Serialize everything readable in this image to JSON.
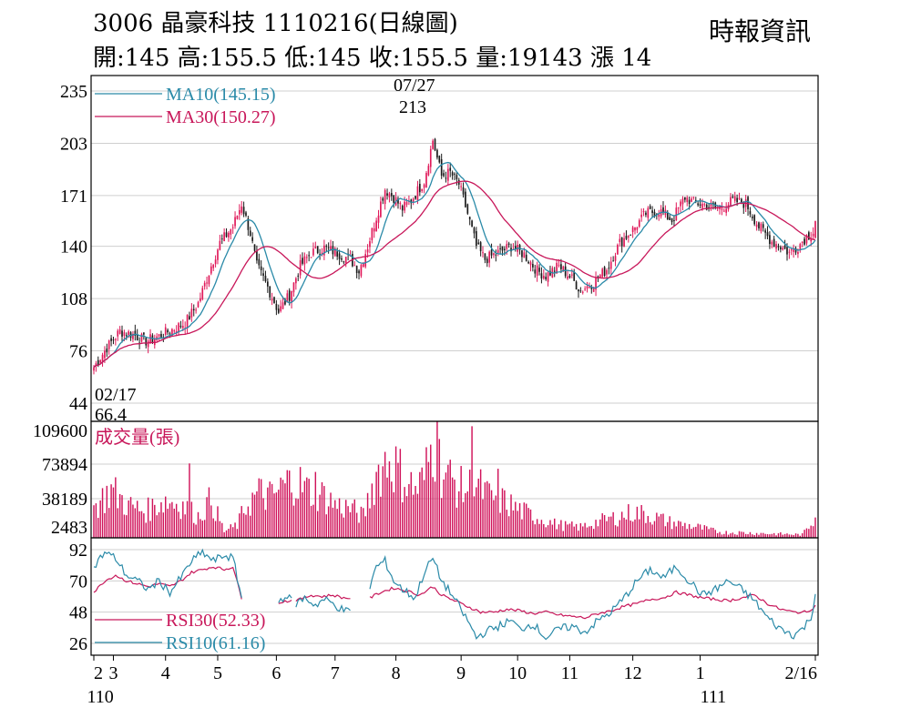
{
  "header": {
    "stock_line": "3006  晶豪科技 1110216(日線圖)",
    "ohlc_line": "開:145 高:155.5 低:145 收:155.5 量:19143 漲 14",
    "source": "時報資訊"
  },
  "colors": {
    "up": "#e0195a",
    "down": "#1a1a1a",
    "ma10": "#2a8aa8",
    "ma30": "#c8175a",
    "volume": "#d0125a",
    "rsi30": "#c8175a",
    "rsi10": "#2a8aa8",
    "grid": "#cfcfcf",
    "frame": "#000000"
  },
  "chart_data": [
    {
      "type": "candlestick",
      "panel": "price",
      "yticks": [
        "235",
        "203",
        "171",
        "140",
        "108",
        "76",
        "44"
      ],
      "ylim": [
        44,
        235
      ],
      "legend": [
        {
          "name": "MA10",
          "value": "(145.15)",
          "color_key": "ma10"
        },
        {
          "name": "MA30",
          "value": "(150.27)",
          "color_key": "ma30"
        }
      ],
      "annotations": {
        "high": {
          "date": "07/27",
          "value": "213"
        },
        "low": {
          "date": "02/17",
          "value": "66.4"
        }
      },
      "anchors": [
        [
          0,
          66
        ],
        [
          6,
          78
        ],
        [
          12,
          88
        ],
        [
          18,
          86
        ],
        [
          24,
          82
        ],
        [
          30,
          85
        ],
        [
          36,
          89
        ],
        [
          42,
          93
        ],
        [
          48,
          105
        ],
        [
          54,
          128
        ],
        [
          58,
          142
        ],
        [
          64,
          152
        ],
        [
          68,
          166
        ],
        [
          72,
          148
        ],
        [
          75,
          128
        ],
        [
          80,
          115
        ],
        [
          85,
          100
        ],
        [
          90,
          110
        ],
        [
          95,
          128
        ],
        [
          100,
          136
        ],
        [
          106,
          139
        ],
        [
          112,
          136
        ],
        [
          118,
          132
        ],
        [
          122,
          125
        ],
        [
          126,
          140
        ],
        [
          130,
          158
        ],
        [
          134,
          175
        ],
        [
          138,
          170
        ],
        [
          142,
          163
        ],
        [
          146,
          168
        ],
        [
          152,
          180
        ],
        [
          156,
          205
        ],
        [
          160,
          183
        ],
        [
          164,
          185
        ],
        [
          168,
          178
        ],
        [
          172,
          160
        ],
        [
          176,
          140
        ],
        [
          180,
          132
        ],
        [
          186,
          136
        ],
        [
          192,
          140
        ],
        [
          198,
          135
        ],
        [
          204,
          125
        ],
        [
          208,
          122
        ],
        [
          214,
          128
        ],
        [
          220,
          120
        ],
        [
          224,
          113
        ],
        [
          230,
          118
        ],
        [
          236,
          126
        ],
        [
          242,
          142
        ],
        [
          248,
          150
        ],
        [
          254,
          160
        ],
        [
          260,
          162
        ],
        [
          266,
          156
        ],
        [
          272,
          170
        ],
        [
          276,
          167
        ],
        [
          282,
          165
        ],
        [
          288,
          163
        ],
        [
          294,
          168
        ],
        [
          300,
          166
        ],
        [
          306,
          152
        ],
        [
          312,
          143
        ],
        [
          316,
          140
        ],
        [
          320,
          136
        ],
        [
          324,
          140
        ],
        [
          328,
          146
        ],
        [
          332,
          150
        ]
      ],
      "last_candle": {
        "open": 145,
        "high": 155.5,
        "low": 145,
        "close": 155.5
      }
    },
    {
      "type": "bar",
      "panel": "volume",
      "title": "成交量(張)",
      "yticks": [
        "109600",
        "73894",
        "38189",
        "2483"
      ],
      "ylim": [
        2483,
        109600
      ],
      "anchors": [
        [
          0,
          28000
        ],
        [
          8,
          45000
        ],
        [
          16,
          30000
        ],
        [
          24,
          25000
        ],
        [
          32,
          35000
        ],
        [
          40,
          32000
        ],
        [
          48,
          20000
        ],
        [
          54,
          36000
        ],
        [
          60,
          6000
        ],
        [
          66,
          12000
        ],
        [
          70,
          30000
        ],
        [
          76,
          42000
        ],
        [
          82,
          38000
        ],
        [
          88,
          50000
        ],
        [
          92,
          55000
        ],
        [
          98,
          45000
        ],
        [
          104,
          42000
        ],
        [
          112,
          30000
        ],
        [
          118,
          28000
        ],
        [
          124,
          20000
        ],
        [
          130,
          60000
        ],
        [
          136,
          75000
        ],
        [
          142,
          58000
        ],
        [
          148,
          45000
        ],
        [
          152,
          55000
        ],
        [
          156,
          90000
        ],
        [
          160,
          65000
        ],
        [
          164,
          55000
        ],
        [
          170,
          45000
        ],
        [
          176,
          50000
        ],
        [
          182,
          38000
        ],
        [
          188,
          35000
        ],
        [
          194,
          28000
        ],
        [
          200,
          22000
        ],
        [
          206,
          18000
        ],
        [
          212,
          13000
        ],
        [
          218,
          11000
        ],
        [
          224,
          10000
        ],
        [
          230,
          14000
        ],
        [
          236,
          17000
        ],
        [
          242,
          20000
        ],
        [
          248,
          24000
        ],
        [
          254,
          22000
        ],
        [
          260,
          18000
        ],
        [
          266,
          14000
        ],
        [
          272,
          12000
        ],
        [
          278,
          10000
        ],
        [
          284,
          7000
        ],
        [
          290,
          5000
        ],
        [
          296,
          5000
        ],
        [
          302,
          4500
        ],
        [
          310,
          4000
        ],
        [
          318,
          3500
        ],
        [
          326,
          3000
        ],
        [
          332,
          19143
        ]
      ],
      "peaks": [
        [
          44,
          70000
        ],
        [
          102,
          62000
        ],
        [
          158,
          109600
        ],
        [
          174,
          105000
        ],
        [
          186,
          65000
        ]
      ]
    },
    {
      "type": "line",
      "panel": "rsi",
      "yticks": [
        "92",
        "70",
        "48",
        "26"
      ],
      "ylim": [
        20,
        95
      ],
      "gaps": [
        [
          68,
          85
        ],
        [
          91,
          93
        ],
        [
          118,
          127
        ]
      ],
      "series": [
        {
          "name": "RSI30",
          "value": "(52.33)",
          "color_key": "rsi30",
          "anchors": [
            [
              0,
              62
            ],
            [
              5,
              70
            ],
            [
              10,
              74
            ],
            [
              15,
              70
            ],
            [
              20,
              68
            ],
            [
              25,
              66
            ],
            [
              30,
              68
            ],
            [
              35,
              66
            ],
            [
              40,
              70
            ],
            [
              45,
              76
            ],
            [
              50,
              78
            ],
            [
              55,
              80
            ],
            [
              60,
              78
            ],
            [
              64,
              80
            ],
            [
              68,
              58
            ],
            [
              72,
              55
            ],
            [
              85,
              55
            ],
            [
              90,
              56
            ],
            [
              95,
              57
            ],
            [
              100,
              60
            ],
            [
              105,
              59
            ],
            [
              110,
              60
            ],
            [
              115,
              58
            ],
            [
              127,
              58
            ],
            [
              132,
              62
            ],
            [
              138,
              65
            ],
            [
              144,
              63
            ],
            [
              150,
              60
            ],
            [
              156,
              66
            ],
            [
              160,
              60
            ],
            [
              166,
              56
            ],
            [
              172,
              52
            ],
            [
              178,
              48
            ],
            [
              184,
              48
            ],
            [
              190,
              50
            ],
            [
              196,
              49
            ],
            [
              202,
              47
            ],
            [
              208,
              48
            ],
            [
              214,
              46
            ],
            [
              220,
              45
            ],
            [
              226,
              44
            ],
            [
              232,
              47
            ],
            [
              238,
              49
            ],
            [
              244,
              52
            ],
            [
              250,
              54
            ],
            [
              256,
              57
            ],
            [
              262,
              58
            ],
            [
              268,
              62
            ],
            [
              274,
              60
            ],
            [
              280,
              58
            ],
            [
              286,
              57
            ],
            [
              292,
              56
            ],
            [
              298,
              58
            ],
            [
              304,
              60
            ],
            [
              310,
              54
            ],
            [
              316,
              50
            ],
            [
              322,
              48
            ],
            [
              328,
              48
            ],
            [
              332,
              52.33
            ]
          ]
        },
        {
          "name": "RSI10",
          "value": "(61.16)",
          "color_key": "rsi10",
          "anchors": [
            [
              0,
              80
            ],
            [
              5,
              90
            ],
            [
              10,
              86
            ],
            [
              15,
              74
            ],
            [
              20,
              70
            ],
            [
              25,
              64
            ],
            [
              30,
              70
            ],
            [
              35,
              62
            ],
            [
              40,
              72
            ],
            [
              45,
              84
            ],
            [
              50,
              90
            ],
            [
              55,
              84
            ],
            [
              60,
              88
            ],
            [
              64,
              86
            ],
            [
              68,
              58
            ],
            [
              72,
              55
            ],
            [
              85,
              55
            ],
            [
              88,
              60
            ],
            [
              91,
              56
            ],
            [
              93,
              54
            ],
            [
              97,
              58
            ],
            [
              102,
              53
            ],
            [
              106,
              57
            ],
            [
              110,
              54
            ],
            [
              114,
              50
            ],
            [
              118,
              48
            ],
            [
              127,
              66
            ],
            [
              130,
              80
            ],
            [
              134,
              84
            ],
            [
              138,
              70
            ],
            [
              142,
              64
            ],
            [
              148,
              58
            ],
            [
              152,
              76
            ],
            [
              156,
              86
            ],
            [
              160,
              70
            ],
            [
              164,
              62
            ],
            [
              168,
              52
            ],
            [
              172,
              42
            ],
            [
              176,
              30
            ],
            [
              180,
              34
            ],
            [
              186,
              38
            ],
            [
              192,
              42
            ],
            [
              196,
              36
            ],
            [
              202,
              40
            ],
            [
              208,
              30
            ],
            [
              214,
              36
            ],
            [
              220,
              38
            ],
            [
              226,
              34
            ],
            [
              232,
              42
            ],
            [
              238,
              48
            ],
            [
              244,
              58
            ],
            [
              250,
              70
            ],
            [
              256,
              78
            ],
            [
              262,
              72
            ],
            [
              268,
              80
            ],
            [
              274,
              70
            ],
            [
              280,
              60
            ],
            [
              286,
              64
            ],
            [
              292,
              70
            ],
            [
              298,
              64
            ],
            [
              304,
              56
            ],
            [
              310,
              44
            ],
            [
              316,
              36
            ],
            [
              322,
              32
            ],
            [
              326,
              36
            ],
            [
              330,
              44
            ],
            [
              332,
              61.16
            ]
          ]
        }
      ]
    }
  ],
  "xaxis": {
    "months": [
      {
        "label": "2",
        "i": 0
      },
      {
        "label": "3",
        "i": 9
      },
      {
        "label": "4",
        "i": 33
      },
      {
        "label": "5",
        "i": 57
      },
      {
        "label": "6",
        "i": 84
      },
      {
        "label": "7",
        "i": 111
      },
      {
        "label": "8",
        "i": 139
      },
      {
        "label": "9",
        "i": 169
      },
      {
        "label": "10",
        "i": 195
      },
      {
        "label": "11",
        "i": 219
      },
      {
        "label": "12",
        "i": 248
      },
      {
        "label": "1",
        "i": 279
      },
      {
        "label": "2/16",
        "i": 332
      }
    ],
    "years": [
      {
        "label": "110",
        "i": 3
      },
      {
        "label": "111",
        "i": 285
      }
    ]
  }
}
